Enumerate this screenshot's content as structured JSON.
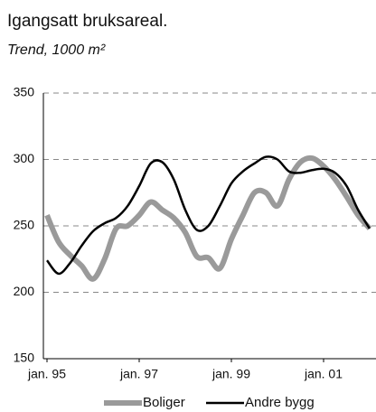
{
  "chart_data": {
    "type": "line",
    "title": "Igangsatt bruksareal.",
    "subtitle": "Trend, 1000 m²",
    "categories": [
      "jan. 95",
      null,
      null,
      null,
      null,
      null,
      null,
      null,
      "jan. 97",
      null,
      null,
      null,
      null,
      null,
      null,
      null,
      "jan. 99",
      null,
      null,
      null,
      null,
      null,
      null,
      null,
      "jan. 01",
      null,
      null,
      null,
      null
    ],
    "series": [
      {
        "name": "Boliger",
        "color": "#9a9a9a",
        "values": [
          258,
          238,
          228,
          220,
          210,
          225,
          248,
          250,
          258,
          268,
          262,
          256,
          245,
          227,
          226,
          218,
          240,
          258,
          275,
          275,
          265,
          285,
          298,
          301,
          295,
          285,
          272,
          258,
          248
        ]
      },
      {
        "name": "Andre bygg",
        "color": "#000000",
        "values": [
          224,
          214,
          222,
          235,
          246,
          252,
          256,
          265,
          280,
          297,
          298,
          285,
          262,
          247,
          250,
          265,
          282,
          291,
          297,
          302,
          300,
          291,
          290,
          292,
          293,
          290,
          280,
          262,
          248
        ]
      }
    ],
    "ylim": [
      150,
      350
    ],
    "yticks": [
      150,
      200,
      250,
      300,
      350
    ],
    "grid": true,
    "legend": "bottom"
  }
}
